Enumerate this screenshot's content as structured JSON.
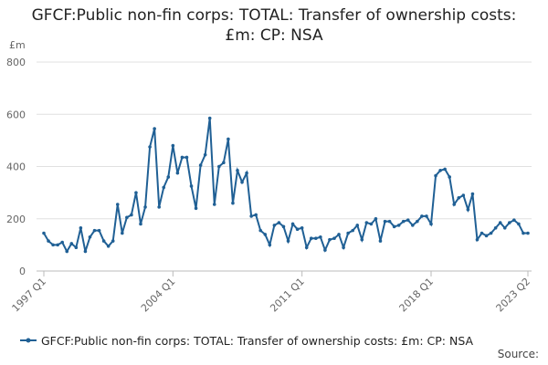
{
  "chart_data": {
    "type": "line",
    "title": "GFCF:Public non-fin corps: TOTAL: Transfer of ownership costs: £m: CP: NSA",
    "y_label": "£m",
    "categories": [
      "1997 Q1",
      null,
      null,
      null,
      null,
      null,
      null,
      null,
      null,
      null,
      null,
      null,
      null,
      null,
      null,
      null,
      null,
      null,
      null,
      null,
      null,
      null,
      null,
      null,
      null,
      null,
      null,
      null,
      "2004 Q1",
      null,
      null,
      null,
      null,
      null,
      null,
      null,
      null,
      null,
      null,
      null,
      null,
      null,
      null,
      null,
      null,
      null,
      null,
      null,
      null,
      null,
      null,
      null,
      null,
      null,
      null,
      null,
      "2011 Q1",
      null,
      null,
      null,
      null,
      null,
      null,
      null,
      null,
      null,
      null,
      null,
      null,
      null,
      null,
      null,
      null,
      null,
      null,
      null,
      null,
      null,
      null,
      null,
      null,
      null,
      null,
      null,
      "2018 Q1",
      null,
      null,
      null,
      null,
      null,
      null,
      null,
      null,
      null,
      null,
      null,
      null,
      null,
      null,
      null,
      null,
      null,
      null,
      null,
      null,
      "2023 Q2"
    ],
    "series": [
      {
        "name": "GFCF:Public non-fin corps: TOTAL: Transfer of ownership costs: £m: CP: NSA",
        "color": "#206095",
        "values": [
          145,
          115,
          100,
          100,
          110,
          75,
          105,
          90,
          165,
          75,
          130,
          155,
          155,
          115,
          95,
          115,
          255,
          145,
          205,
          215,
          300,
          180,
          245,
          475,
          545,
          245,
          320,
          360,
          480,
          375,
          435,
          435,
          325,
          240,
          405,
          445,
          585,
          255,
          400,
          415,
          505,
          260,
          385,
          340,
          375,
          210,
          215,
          155,
          140,
          100,
          175,
          185,
          170,
          115,
          180,
          160,
          165,
          90,
          125,
          125,
          130,
          80,
          120,
          125,
          140,
          90,
          145,
          155,
          175,
          120,
          185,
          180,
          200,
          115,
          190,
          190,
          170,
          175,
          190,
          195,
          175,
          190,
          210,
          210,
          180,
          365,
          385,
          390,
          360,
          255,
          280,
          290,
          235,
          295,
          120,
          145,
          135,
          145,
          165,
          185,
          165,
          185,
          195,
          180,
          145,
          145
        ]
      }
    ],
    "ylim": [
      0,
      800
    ],
    "yticks": [
      0,
      200,
      400,
      600,
      800
    ],
    "grid": true,
    "legend": "bottom",
    "source": "Source:"
  }
}
